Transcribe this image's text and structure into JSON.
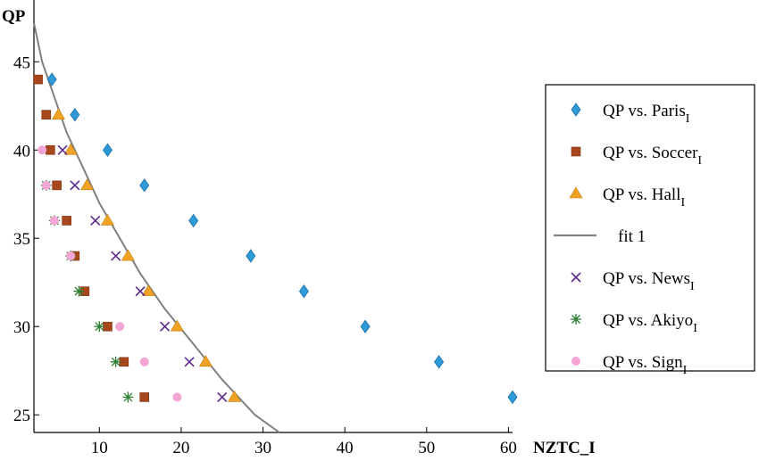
{
  "chart_data": {
    "type": "scatter",
    "title": "",
    "xlabel": "NZTC_I",
    "ylabel": "QP",
    "xlim": [
      2,
      60.5
    ],
    "ylim": [
      24,
      48.5
    ],
    "xticks": [
      10,
      20,
      30,
      40,
      50,
      60
    ],
    "yticks": [
      25,
      30,
      35,
      40,
      45
    ],
    "grid": false,
    "legend_position": "right",
    "series": [
      {
        "name": "QP vs. Paris",
        "name_subscript": "I",
        "marker": "diamond",
        "color": "#2e9ad6",
        "points": [
          [
            4.2,
            44
          ],
          [
            7,
            42
          ],
          [
            11,
            40
          ],
          [
            15.5,
            38
          ],
          [
            21.5,
            36
          ],
          [
            28.5,
            34
          ],
          [
            35,
            32
          ],
          [
            42.5,
            30
          ],
          [
            51.5,
            28
          ],
          [
            60.5,
            26
          ]
        ]
      },
      {
        "name": "QP vs. Soccer",
        "name_subscript": "I",
        "marker": "square",
        "color": "#a8461c",
        "points": [
          [
            2.5,
            44
          ],
          [
            3.5,
            42
          ],
          [
            4,
            40
          ],
          [
            4.8,
            38
          ],
          [
            6,
            36
          ],
          [
            7,
            34
          ],
          [
            8.2,
            32
          ],
          [
            11,
            30
          ],
          [
            13,
            28
          ],
          [
            15.5,
            26
          ]
        ]
      },
      {
        "name": "QP vs. Hall",
        "name_subscript": "I",
        "marker": "triangle",
        "color": "#f0a224",
        "points": [
          [
            5,
            42
          ],
          [
            6.5,
            40
          ],
          [
            8.5,
            38
          ],
          [
            11,
            36
          ],
          [
            13.5,
            34
          ],
          [
            16,
            32
          ],
          [
            19.5,
            30
          ],
          [
            23,
            28
          ],
          [
            26.5,
            26
          ]
        ]
      },
      {
        "name": "fit 1",
        "type": "line",
        "color": "#808080",
        "points": [
          [
            2,
            47.2
          ],
          [
            3,
            45
          ],
          [
            4.5,
            43
          ],
          [
            6,
            41
          ],
          [
            8,
            39
          ],
          [
            10,
            37
          ],
          [
            12.5,
            35
          ],
          [
            15,
            33
          ],
          [
            18,
            31
          ],
          [
            21.5,
            29
          ],
          [
            25,
            27
          ],
          [
            29,
            25
          ],
          [
            32,
            24
          ]
        ]
      },
      {
        "name": "QP vs. News",
        "name_subscript": "I",
        "marker": "x",
        "color": "#5b2a8c",
        "points": [
          [
            5.5,
            40
          ],
          [
            7,
            38
          ],
          [
            9.5,
            36
          ],
          [
            12,
            34
          ],
          [
            15,
            32
          ],
          [
            18,
            30
          ],
          [
            21,
            28
          ],
          [
            25,
            26
          ]
        ]
      },
      {
        "name": "QP vs. Akiyo",
        "name_subscript": "I",
        "marker": "asterisk",
        "color": "#2e7d32",
        "points": [
          [
            3.5,
            38
          ],
          [
            4.5,
            36
          ],
          [
            6.5,
            34
          ],
          [
            7.5,
            32
          ],
          [
            10,
            30
          ],
          [
            12,
            28
          ],
          [
            13.5,
            26
          ]
        ]
      },
      {
        "name": "QP vs. Sign",
        "name_subscript": "I",
        "marker": "circle",
        "color": "#f3a6d6",
        "points": [
          [
            3,
            40
          ],
          [
            3.5,
            38
          ],
          [
            4.5,
            36
          ],
          [
            6.5,
            34
          ],
          [
            12.5,
            30
          ],
          [
            15.5,
            28
          ],
          [
            19.5,
            26
          ]
        ]
      }
    ]
  }
}
